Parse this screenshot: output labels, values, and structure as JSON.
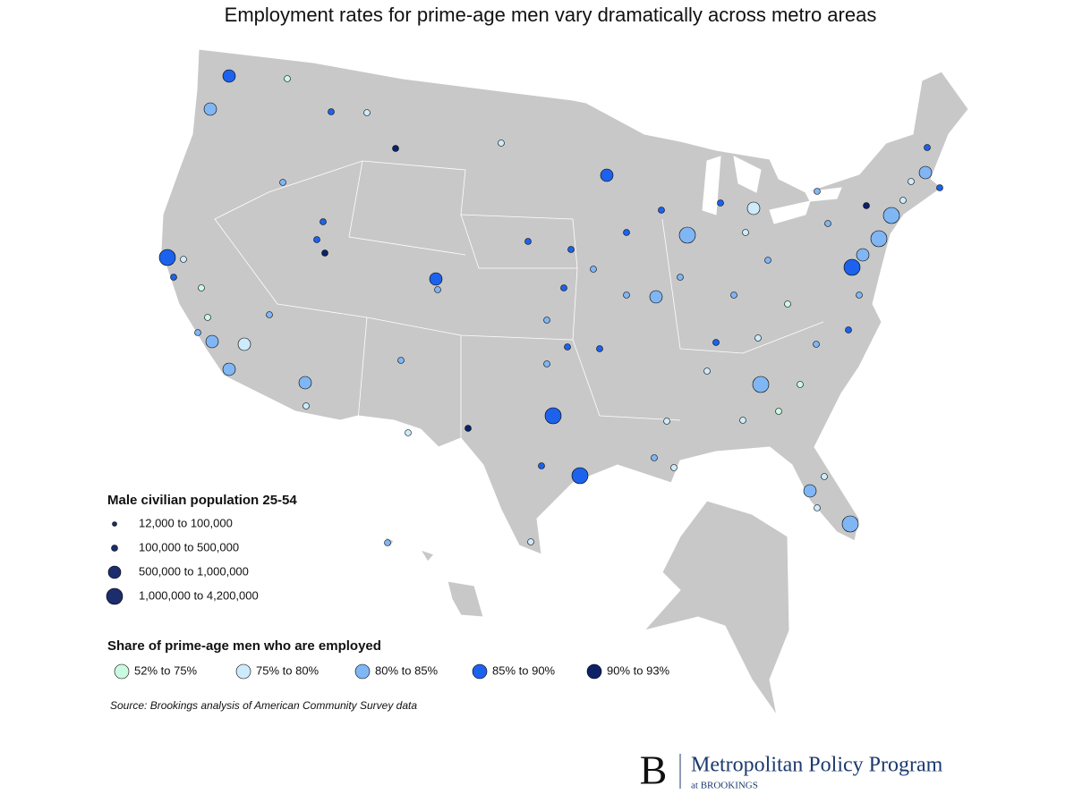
{
  "title": "Employment rates for prime-age men vary dramatically across metro areas",
  "size_legend": {
    "title": "Male civilian population 25-54",
    "items": [
      "12,000 to 100,000",
      "100,000 to 500,000",
      "500,000 to 1,000,000",
      "1,000,000 to 4,200,000"
    ],
    "symbol_color": "#1c2d6e"
  },
  "color_legend": {
    "title": "Share of prime-age men who are employed",
    "items": [
      {
        "label": "52% to 75%",
        "color": "#c9fbe2"
      },
      {
        "label": "75% to 80%",
        "color": "#cdebfb"
      },
      {
        "label": "80% to 85%",
        "color": "#80b6f3"
      },
      {
        "label": "85% to 90%",
        "color": "#1c62ec"
      },
      {
        "label": "90% to 93%",
        "color": "#0c2168"
      }
    ]
  },
  "source": "Source: Brookings analysis of American Community Survey data",
  "logo": {
    "mark": "B",
    "name": "Metropolitan Policy Program",
    "sub": "at BROOKINGS"
  }
}
